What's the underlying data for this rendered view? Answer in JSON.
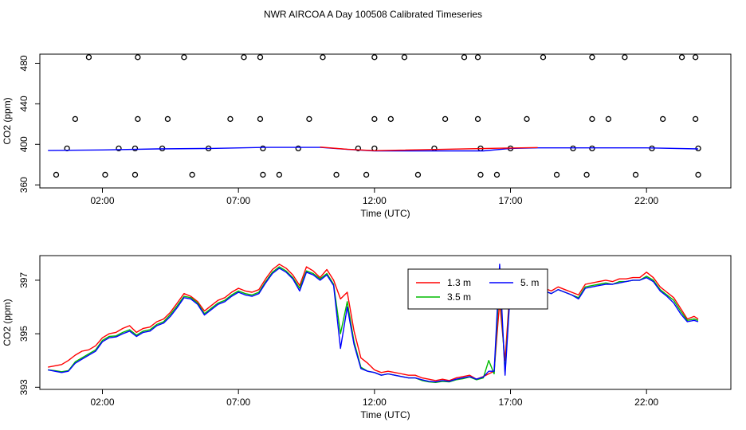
{
  "title": "NWR AIRCOA A  Day 100508  Calibrated Timeseries",
  "chart_data": [
    {
      "type": "scatter",
      "xlabel": "Time (UTC)",
      "ylabel": "CO2 (ppm)",
      "xlim": [
        -0.3,
        25.1
      ],
      "ylim": [
        357,
        489
      ],
      "xticks": [
        2,
        7,
        12,
        17,
        22
      ],
      "xtick_labels": [
        "02:00",
        "07:00",
        "12:00",
        "17:00",
        "22:00"
      ],
      "yticks": [
        360,
        400,
        440,
        480
      ],
      "ytick_labels": [
        "360",
        "400",
        "440",
        "480"
      ],
      "grid": false,
      "series": [
        {
          "kind": "points",
          "color": "#000000",
          "x": [
            1.5,
            3.3,
            5.0,
            7.2,
            7.8,
            10.1,
            12.0,
            13.1,
            15.3,
            15.8,
            18.2,
            20.0,
            21.2,
            23.3,
            23.8,
            1.0,
            3.3,
            4.4,
            6.7,
            7.8,
            9.6,
            12.0,
            12.6,
            14.6,
            15.8,
            17.6,
            20.0,
            20.6,
            22.6,
            23.8,
            0.7,
            2.6,
            3.2,
            4.2,
            5.9,
            7.9,
            9.2,
            11.4,
            12.0,
            14.2,
            15.9,
            17.0,
            19.3,
            20.0,
            22.2,
            23.9,
            0.3,
            2.1,
            3.2,
            5.3,
            7.9,
            8.5,
            10.6,
            11.7,
            13.6,
            15.9,
            16.5,
            18.7,
            19.8,
            21.6,
            23.9
          ],
          "y": [
            486,
            486,
            486,
            486,
            486,
            486,
            486,
            486,
            486,
            486,
            486,
            486,
            486,
            486,
            486,
            425,
            425,
            425,
            425,
            425,
            425,
            425,
            425,
            425,
            425,
            425,
            425,
            425,
            425,
            425,
            396,
            396,
            396,
            396,
            396,
            396,
            396,
            396,
            396,
            396,
            396,
            396,
            396,
            396,
            396,
            396,
            370,
            370,
            370,
            370,
            370,
            370,
            370,
            370,
            370,
            370,
            370,
            370,
            370,
            370,
            370
          ]
        },
        {
          "kind": "line",
          "color": "#0000ff",
          "x": [
            0.0,
            2.0,
            4.0,
            6.0,
            8.0,
            10.0,
            11.0,
            12.0,
            14.0,
            16.0,
            17.0,
            18.0,
            20.0,
            22.0,
            23.9
          ],
          "y": [
            394,
            394.5,
            395.5,
            396,
            397,
            397,
            395,
            393.5,
            393.5,
            393.5,
            396,
            396.5,
            396.5,
            396.5,
            395.5
          ]
        },
        {
          "kind": "line",
          "color": "#ff0000",
          "x": [
            10.0,
            11.0,
            12.0,
            17.0,
            18.0
          ],
          "y": [
            397.3,
            395.2,
            393.8,
            396.4,
            396.8
          ]
        }
      ]
    },
    {
      "type": "line",
      "xlabel": "Time (UTC)",
      "ylabel": "CO2 (ppm)",
      "xlim": [
        -0.3,
        25.1
      ],
      "ylim": [
        392.92,
        397.92
      ],
      "xticks": [
        2,
        7,
        12,
        17,
        22
      ],
      "xtick_labels": [
        "02:00",
        "07:00",
        "12:00",
        "17:00",
        "22:00"
      ],
      "yticks": [
        393,
        395,
        397
      ],
      "ytick_labels": [
        "393",
        "395",
        "397"
      ],
      "grid": false,
      "legend_position": "top-center-right",
      "x": [
        0.0,
        0.25,
        0.5,
        0.75,
        1.0,
        1.25,
        1.5,
        1.75,
        2.0,
        2.25,
        2.5,
        2.75,
        3.0,
        3.25,
        3.5,
        3.75,
        4.0,
        4.25,
        4.5,
        4.75,
        5.0,
        5.25,
        5.5,
        5.75,
        6.0,
        6.25,
        6.5,
        6.75,
        7.0,
        7.25,
        7.5,
        7.75,
        8.0,
        8.25,
        8.5,
        8.75,
        9.0,
        9.25,
        9.5,
        9.75,
        10.0,
        10.25,
        10.5,
        10.75,
        11.0,
        11.25,
        11.5,
        11.75,
        12.0,
        12.25,
        12.5,
        12.75,
        13.0,
        13.25,
        13.5,
        13.75,
        14.0,
        14.25,
        14.5,
        14.75,
        15.0,
        15.25,
        15.5,
        15.75,
        16.0,
        16.2,
        16.4,
        16.6,
        16.8,
        17.0,
        17.25,
        17.5,
        17.75,
        18.0,
        18.25,
        18.5,
        18.75,
        19.0,
        19.25,
        19.5,
        19.75,
        20.0,
        20.25,
        20.5,
        20.75,
        21.0,
        21.25,
        21.5,
        21.75,
        22.0,
        22.25,
        22.5,
        22.75,
        23.0,
        23.25,
        23.5,
        23.75,
        23.9
      ],
      "series": [
        {
          "name": "1.3 m",
          "color": "#ff0000",
          "values": [
            393.75,
            393.8,
            393.85,
            394.0,
            394.2,
            394.35,
            394.4,
            394.55,
            394.85,
            395.0,
            395.05,
            395.2,
            395.3,
            395.05,
            395.2,
            395.25,
            395.45,
            395.55,
            395.8,
            396.15,
            396.5,
            396.4,
            396.2,
            395.85,
            396.05,
            396.25,
            396.35,
            396.55,
            396.7,
            396.6,
            396.55,
            396.65,
            397.05,
            397.4,
            397.6,
            397.45,
            397.2,
            396.8,
            397.5,
            397.35,
            397.1,
            397.4,
            397.0,
            396.3,
            396.55,
            395.1,
            394.1,
            393.9,
            393.65,
            393.55,
            393.6,
            393.55,
            393.5,
            393.45,
            393.45,
            393.35,
            393.3,
            393.25,
            393.3,
            393.25,
            393.35,
            393.4,
            393.45,
            393.3,
            393.4,
            393.5,
            393.6,
            396.2,
            394.0,
            397.0,
            396.9,
            396.8,
            396.85,
            396.8,
            396.7,
            396.6,
            396.75,
            396.65,
            396.55,
            396.45,
            396.85,
            396.9,
            396.95,
            397.0,
            396.95,
            397.05,
            397.05,
            397.1,
            397.1,
            397.3,
            397.1,
            396.75,
            396.55,
            396.35,
            395.95,
            395.55,
            395.65,
            395.55
          ]
        },
        {
          "name": "3.5 m",
          "color": "#00bb00",
          "values": [
            393.65,
            393.62,
            393.58,
            393.62,
            393.95,
            394.1,
            394.25,
            394.4,
            394.75,
            394.9,
            394.92,
            395.05,
            395.15,
            394.95,
            395.1,
            395.15,
            395.35,
            395.45,
            395.72,
            396.05,
            396.4,
            396.35,
            396.15,
            395.75,
            395.95,
            396.15,
            396.25,
            396.45,
            396.6,
            396.5,
            396.45,
            396.55,
            396.95,
            397.3,
            397.5,
            397.35,
            397.1,
            396.7,
            397.35,
            397.25,
            397.05,
            397.25,
            396.85,
            395.0,
            396.2,
            394.7,
            393.75,
            393.6,
            393.55,
            393.45,
            393.5,
            393.45,
            393.4,
            393.35,
            393.35,
            393.25,
            393.2,
            393.18,
            393.22,
            393.2,
            393.28,
            393.32,
            393.38,
            393.28,
            393.35,
            394.0,
            393.5,
            397.1,
            393.55,
            396.85,
            396.8,
            396.7,
            396.75,
            396.7,
            396.6,
            396.5,
            396.65,
            396.55,
            396.45,
            396.35,
            396.75,
            396.8,
            396.85,
            396.9,
            396.85,
            396.95,
            396.95,
            397.0,
            397.0,
            397.15,
            397.0,
            396.65,
            396.45,
            396.25,
            395.85,
            395.5,
            395.55,
            395.5
          ]
        },
        {
          "name": "5. m",
          "color": "#0000ff",
          "values": [
            393.65,
            393.6,
            393.55,
            393.6,
            393.9,
            394.05,
            394.2,
            394.35,
            394.7,
            394.85,
            394.88,
            395.0,
            395.1,
            394.9,
            395.05,
            395.1,
            395.3,
            395.4,
            395.65,
            395.98,
            396.35,
            396.3,
            396.1,
            395.7,
            395.9,
            396.1,
            396.2,
            396.4,
            396.55,
            396.45,
            396.4,
            396.5,
            396.9,
            397.25,
            397.45,
            397.3,
            397.05,
            396.6,
            397.3,
            397.2,
            397.0,
            397.2,
            396.8,
            394.45,
            396.0,
            394.6,
            393.7,
            393.6,
            393.55,
            393.45,
            393.5,
            393.45,
            393.4,
            393.35,
            393.35,
            393.28,
            393.22,
            393.2,
            393.25,
            393.22,
            393.3,
            393.35,
            393.4,
            393.3,
            393.38,
            393.6,
            393.6,
            397.6,
            393.45,
            396.7,
            396.8,
            396.7,
            396.75,
            396.7,
            396.6,
            396.5,
            396.65,
            396.55,
            396.45,
            396.3,
            396.7,
            396.75,
            396.8,
            396.85,
            396.85,
            396.9,
            396.95,
            397.0,
            397.0,
            397.1,
            396.95,
            396.6,
            396.4,
            396.15,
            395.75,
            395.45,
            395.5,
            395.45
          ]
        }
      ]
    }
  ]
}
